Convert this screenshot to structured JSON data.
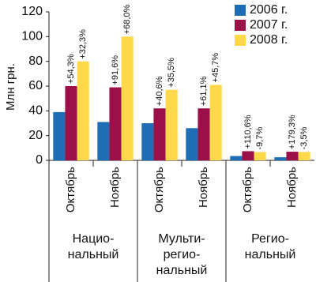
{
  "chart_data": {
    "type": "bar",
    "y_label": "Млн грн.",
    "categories": [
      "Октябрь",
      "Ноябрь",
      "Октябрь",
      "Ноябрь",
      "Октябрь",
      "Ноябрь"
    ],
    "groups": [
      {
        "lines": [
          "Нацио-",
          "нальный"
        ]
      },
      {
        "lines": [
          "Мульти-",
          "регио-",
          "нальный"
        ]
      },
      {
        "lines": [
          "Регио-",
          "нальный"
        ]
      }
    ],
    "series": [
      {
        "name": "2006 г.",
        "color": "#1f6db4",
        "values": [
          39,
          31,
          30,
          26,
          3.5,
          2.5
        ]
      },
      {
        "name": "2007 г.",
        "color": "#9b1048",
        "values": [
          60,
          59,
          42,
          42,
          7.4,
          7
        ],
        "annotations": [
          "+54,3%",
          "+91,6%",
          "+40,6%",
          "+61,1%",
          "+110,6%",
          "+179,3%"
        ]
      },
      {
        "name": "2008 г.",
        "color": "#ffd94a",
        "values": [
          80,
          100,
          57,
          61,
          6.7,
          6.8
        ],
        "annotations": [
          "+32,3%",
          "+68,0%",
          "+35,5%",
          "+45,7%",
          "-9,7%",
          "-3,5%"
        ]
      }
    ],
    "ylim": [
      0,
      120
    ],
    "yticks": [
      0,
      20,
      40,
      60,
      80,
      100,
      120
    ],
    "grid": false,
    "legend": "top-right"
  }
}
